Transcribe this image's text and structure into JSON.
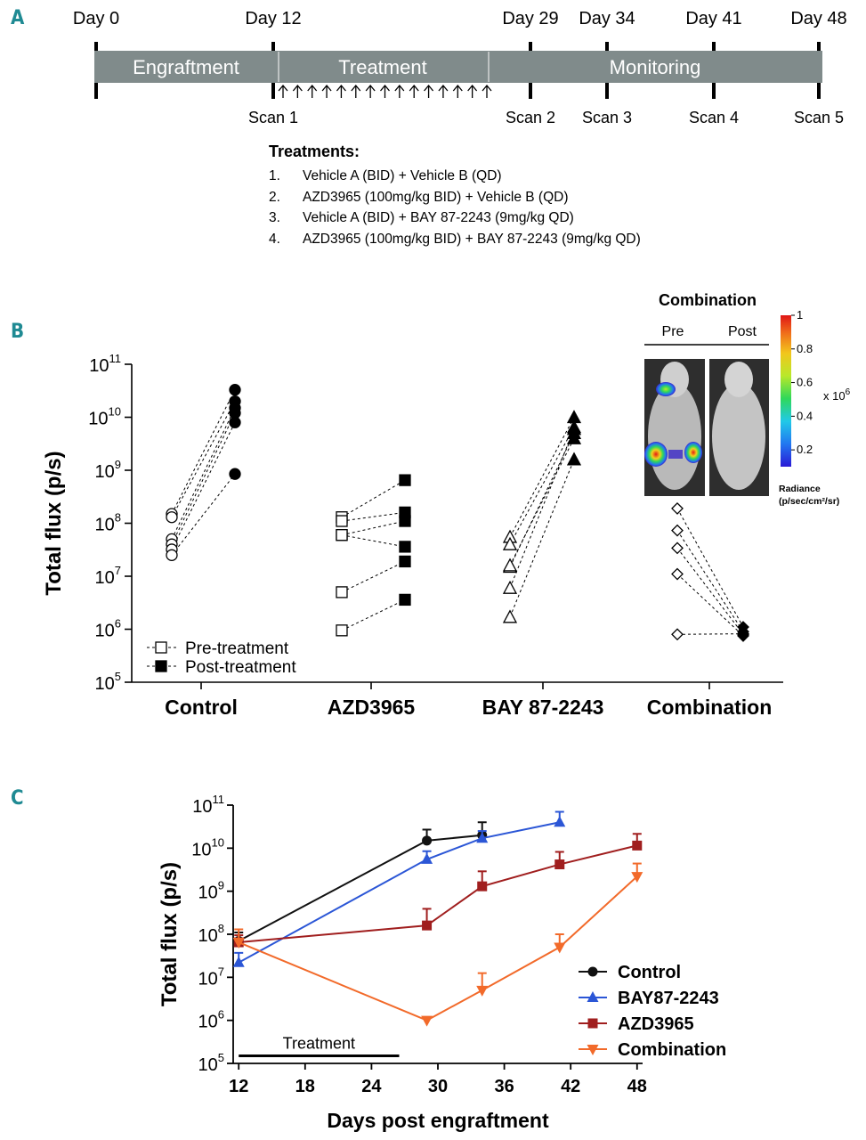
{
  "panels": {
    "a": "A",
    "b": "B",
    "c": "C"
  },
  "timeline": {
    "days": [
      "Day 0",
      "Day 12",
      "Day 29",
      "Day 34",
      "Day 41",
      "Day 48"
    ],
    "phases": [
      "Engraftment",
      "Treatment",
      "Monitoring"
    ],
    "scans": [
      "Scan 1",
      "Scan 2",
      "Scan 3",
      "Scan 4",
      "Scan 5"
    ],
    "dosing_arrow_count": 15
  },
  "treatments": {
    "title": "Treatments:",
    "items": [
      {
        "num": "1.",
        "text": "Vehicle A (BID) + Vehicle B (QD)"
      },
      {
        "num": "2.",
        "text": "AZD3965 (100mg/kg BID) + Vehicle B (QD)"
      },
      {
        "num": "3.",
        "text": "Vehicle A (BID) + BAY 87-2243 (9mg/kg QD)"
      },
      {
        "num": "4.",
        "text": "AZD3965 (100mg/kg BID) + BAY 87-2243 (9mg/kg QD)"
      }
    ]
  },
  "inset": {
    "title": "Combination",
    "pre": "Pre",
    "post": "Post",
    "colorbar_ticks": [
      "1",
      "0.8",
      "0.6",
      "0.4",
      "0.2"
    ],
    "scale_base": "x 10",
    "scale_exp": "6",
    "radiance_label": "Radiance",
    "radiance_unit": "(p/sec/cm²/sr)"
  },
  "chart_data": [
    {
      "type": "scatter",
      "title": "",
      "ylabel": "Total flux (p/s)",
      "yscale": "log",
      "ylim_exp": [
        5,
        11
      ],
      "categories": [
        "Control",
        "AZD3965",
        "BAY 87-2243",
        "Combination"
      ],
      "legend": [
        "Pre-treatment",
        "Post-treatment"
      ],
      "legend_position": "bottom-left",
      "series": [
        {
          "group": "Control",
          "pre": [
            150000000.0,
            130000000.0,
            50000000.0,
            40000000.0,
            32000000.0,
            25000000.0
          ],
          "post": [
            33000000000.0,
            20000000000.0,
            15000000000.0,
            12000000000.0,
            8000000000.0,
            850000000.0
          ]
        },
        {
          "group": "AZD3965",
          "pre": [
            130000000.0,
            110000000.0,
            60000000.0,
            60000000.0,
            5000000.0,
            950000.0
          ],
          "post": [
            650000000.0,
            160000000.0,
            110000000.0,
            36000000.0,
            19000000.0,
            3600000.0
          ]
        },
        {
          "group": "BAY 87-2243",
          "pre": [
            55000000.0,
            40000000.0,
            15000000.0,
            16000000.0,
            6000000.0,
            1700000.0
          ],
          "post": [
            10000000000.0,
            6500000000.0,
            5000000000.0,
            4000000000.0,
            6000000000.0,
            1600000000.0
          ]
        },
        {
          "group": "Combination",
          "pre": [
            190000000.0,
            73000000.0,
            34000000.0,
            11000000.0,
            800000.0
          ],
          "post": [
            1100000.0,
            900000.0,
            800000.0,
            750000.0,
            820000.0
          ]
        }
      ]
    },
    {
      "type": "line",
      "title": "",
      "xlabel": "Days post engraftment",
      "ylabel": "Total flux (p/s)",
      "yscale": "log",
      "ylim_exp": [
        5,
        11
      ],
      "xlim": [
        11.5,
        48.5
      ],
      "xticks": [
        12,
        18,
        24,
        30,
        36,
        42,
        48
      ],
      "legend_position": "bottom-right",
      "annotation": {
        "text": "Treatment",
        "x_start": 12,
        "x_end": 26.5,
        "y": 150000.0
      },
      "series": [
        {
          "name": "Control",
          "color": "#111111",
          "marker": "circle",
          "x": [
            12,
            29,
            34
          ],
          "y": [
            70000000.0,
            15000000000.0,
            20000000000.0
          ],
          "err": [
            40000000.0,
            12000000000.0,
            20000000000.0
          ]
        },
        {
          "name": "BAY87-2243",
          "color": "#2b56d6",
          "marker": "triangle-up",
          "x": [
            12,
            29,
            34,
            41
          ],
          "y": [
            22000000.0,
            5500000000.0,
            17000000000.0,
            40000000000.0
          ],
          "err": [
            15000000.0,
            3000000000.0,
            8000000000.0,
            30000000000.0
          ]
        },
        {
          "name": "AZD3965",
          "color": "#a01e1e",
          "marker": "square",
          "x": [
            12,
            29,
            34,
            41,
            48
          ],
          "y": [
            65000000.0,
            160000000.0,
            1300000000.0,
            4200000000.0,
            11500000000.0
          ],
          "err": [
            30000000.0,
            230000000.0,
            1600000000.0,
            4000000000.0,
            10000000000.0
          ]
        },
        {
          "name": "Combination",
          "color": "#f26a2a",
          "marker": "triangle-down",
          "x": [
            12,
            29,
            34,
            41,
            48
          ],
          "y": [
            65000000.0,
            1000000.0,
            5000000.0,
            50000000.0,
            2200000000.0
          ],
          "err": [
            65000000.0,
            0,
            7500000.0,
            50000000.0,
            2200000000.0
          ]
        }
      ]
    }
  ]
}
